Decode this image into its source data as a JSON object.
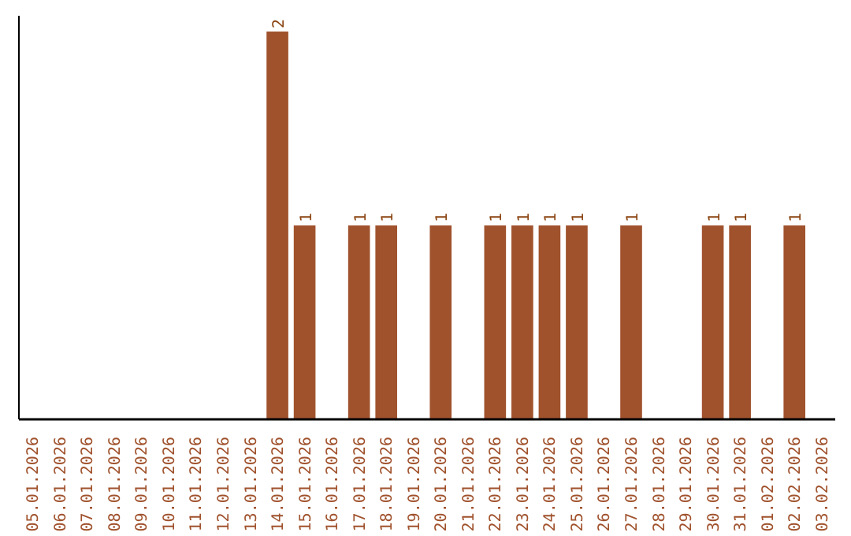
{
  "chart_data": {
    "type": "bar",
    "categories": [
      "05.01.2026",
      "06.01.2026",
      "07.01.2026",
      "08.01.2026",
      "09.01.2026",
      "10.01.2026",
      "11.01.2026",
      "12.01.2026",
      "13.01.2026",
      "14.01.2026",
      "15.01.2026",
      "16.01.2026",
      "17.01.2026",
      "18.01.2026",
      "19.01.2026",
      "20.01.2026",
      "21.01.2026",
      "22.01.2026",
      "23.01.2026",
      "24.01.2026",
      "25.01.2026",
      "26.01.2026",
      "27.01.2026",
      "28.01.2026",
      "29.01.2026",
      "30.01.2026",
      "31.01.2026",
      "01.02.2026",
      "02.02.2026",
      "03.02.2026"
    ],
    "values": [
      0,
      0,
      0,
      0,
      0,
      0,
      0,
      0,
      0,
      2,
      1,
      0,
      1,
      1,
      0,
      1,
      0,
      1,
      1,
      1,
      1,
      0,
      1,
      0,
      0,
      1,
      1,
      0,
      1,
      0
    ],
    "value_labels": [
      null,
      null,
      null,
      null,
      null,
      null,
      null,
      null,
      null,
      "2",
      "1",
      null,
      "1",
      "1",
      null,
      "1",
      null,
      "1",
      "1",
      "1",
      "1",
      null,
      "1",
      null,
      null,
      "1",
      "1",
      null,
      "1",
      null
    ],
    "color": "#a0522d",
    "grid": false,
    "tick_labels": "x"
  }
}
